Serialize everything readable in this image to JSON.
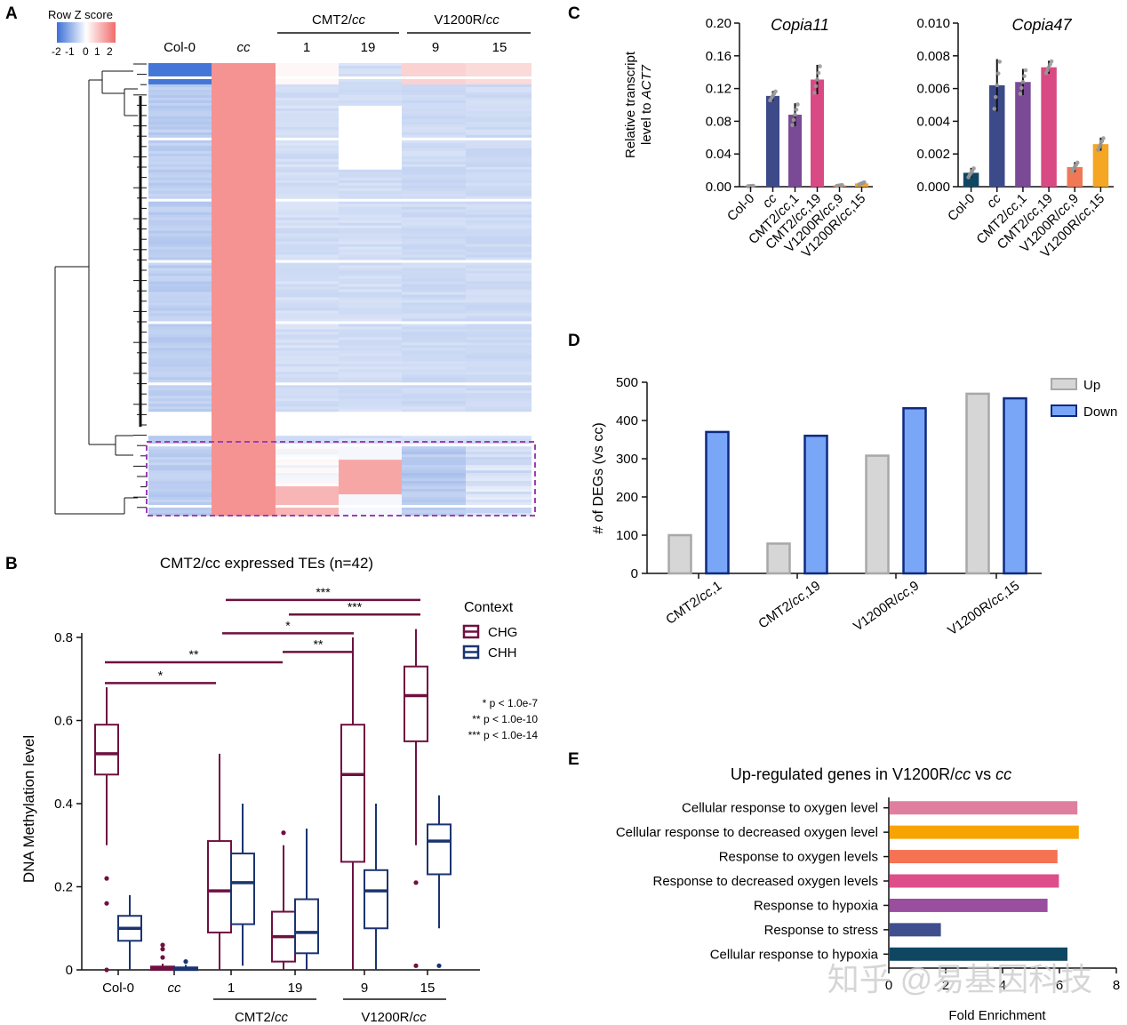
{
  "panels": {
    "A": {
      "label": "A",
      "legend": {
        "title": "Row Z score",
        "ticks": [
          "-2",
          "-1",
          "0",
          "1",
          "2"
        ]
      },
      "col_headers": [
        "Col-0",
        "cc",
        "1",
        "19",
        "9",
        "15"
      ],
      "group_labels": [
        {
          "main": "CMT2/",
          "italic": "cc"
        },
        {
          "main": "V1200R/",
          "italic": "cc"
        }
      ]
    },
    "B": {
      "label": "B",
      "title": "CMT2/cc expressed TEs (n=42)",
      "ylabel": "DNA Methylation level",
      "legend_title": "Context",
      "legend": [
        "CHG",
        "CHH"
      ],
      "pvalue_notes": [
        "* p < 1.0e-7",
        "** p < 1.0e-10",
        "*** p < 1.0e-14"
      ],
      "group_labels": [
        {
          "main": "CMT2/",
          "italic": "cc"
        },
        {
          "main": "V1200R/",
          "italic": "cc"
        }
      ]
    },
    "C": {
      "label": "C",
      "ylabel_line1": "Relative transcript",
      "ylabel_line2_main": "level to ",
      "ylabel_line2_italic": "ACT7"
    },
    "D": {
      "label": "D"
    },
    "E": {
      "label": "E"
    }
  },
  "watermark": "知乎 @易基因科技",
  "colors": {
    "chg": "#6e1140",
    "chh": "#1b3470",
    "sig_line": "#6e1140",
    "up": "#d6d6d6",
    "down": "#7aa6f7",
    "highlight_box": "#9b3fb5"
  },
  "chart_data": [
    {
      "id": "A",
      "type": "heatmap",
      "title": "",
      "columns": [
        "Col-0",
        "cc",
        "CMT2/cc 1",
        "CMT2/cc 19",
        "V1200R/cc 9",
        "V1200R/cc 15"
      ],
      "color_scale": {
        "min": -2,
        "max": 2,
        "low": "blue",
        "mid": "white",
        "high": "red"
      },
      "note": "dendrogram of rows on left; dashed box highlights lower row cluster"
    },
    {
      "id": "B",
      "type": "box",
      "title": "CMT2/cc expressed TEs (n=42)",
      "ylabel": "DNA Methylation level",
      "ylim": [
        0,
        0.8
      ],
      "yticks": [
        "0",
        "0.2",
        "0.4",
        "0.6",
        "0.8"
      ],
      "categories": [
        {
          "name": "Col-0",
          "italic": false
        },
        {
          "name": "cc",
          "italic": true
        },
        {
          "name": "1",
          "italic": false
        },
        {
          "name": "19",
          "italic": false
        },
        {
          "name": "9",
          "italic": false
        },
        {
          "name": "15",
          "italic": false
        }
      ],
      "series": [
        {
          "name": "CHG",
          "boxes": [
            {
              "q1": 0.47,
              "median": 0.52,
              "q3": 0.59,
              "lo": 0.3,
              "hi": 0.68,
              "outliers": [
                0.22,
                0.16,
                0.0
              ]
            },
            {
              "q1": 0.0,
              "median": 0.003,
              "q3": 0.008,
              "lo": 0.0,
              "hi": 0.015,
              "outliers": [
                0.06,
                0.05,
                0.03
              ]
            },
            {
              "q1": 0.09,
              "median": 0.19,
              "q3": 0.31,
              "lo": 0.0,
              "hi": 0.52,
              "outliers": []
            },
            {
              "q1": 0.02,
              "median": 0.08,
              "q3": 0.14,
              "lo": 0.0,
              "hi": 0.3,
              "outliers": [
                0.33
              ]
            },
            {
              "q1": 0.26,
              "median": 0.47,
              "q3": 0.59,
              "lo": 0.0,
              "hi": 0.8,
              "outliers": []
            },
            {
              "q1": 0.55,
              "median": 0.66,
              "q3": 0.73,
              "lo": 0.3,
              "hi": 0.82,
              "outliers": [
                0.21,
                0.01
              ]
            }
          ]
        },
        {
          "name": "CHH",
          "boxes": [
            {
              "q1": 0.07,
              "median": 0.1,
              "q3": 0.13,
              "lo": 0.0,
              "hi": 0.18,
              "outliers": []
            },
            {
              "q1": 0.0,
              "median": 0.003,
              "q3": 0.006,
              "lo": 0.0,
              "hi": 0.012,
              "outliers": [
                0.02
              ]
            },
            {
              "q1": 0.11,
              "median": 0.21,
              "q3": 0.28,
              "lo": 0.01,
              "hi": 0.4,
              "outliers": []
            },
            {
              "q1": 0.04,
              "median": 0.09,
              "q3": 0.17,
              "lo": 0.0,
              "hi": 0.34,
              "outliers": []
            },
            {
              "q1": 0.1,
              "median": 0.19,
              "q3": 0.24,
              "lo": 0.0,
              "hi": 0.4,
              "outliers": []
            },
            {
              "q1": 0.23,
              "median": 0.31,
              "q3": 0.35,
              "lo": 0.1,
              "hi": 0.42,
              "outliers": [
                0.01
              ]
            }
          ]
        }
      ],
      "significance": [
        {
          "stars": "*",
          "from": 0,
          "to": 2,
          "y": 0.69
        },
        {
          "stars": "**",
          "from": 0,
          "to": 3,
          "y": 0.74
        },
        {
          "stars": "**",
          "from": 3,
          "to": 4,
          "y": 0.765
        },
        {
          "stars": "*",
          "from": 2,
          "to": 4,
          "y": 0.81
        },
        {
          "stars": "***",
          "from": 3,
          "to": 5,
          "y": 0.855
        },
        {
          "stars": "***",
          "from": 2,
          "to": 5,
          "y": 0.89
        }
      ]
    },
    {
      "id": "C1",
      "type": "bar",
      "title": "Copia11",
      "ylim": [
        0,
        0.2
      ],
      "yticks": [
        "0.00",
        "0.04",
        "0.08",
        "0.12",
        "0.16",
        "0.20"
      ],
      "categories": [
        {
          "main": "Col-0",
          "italic": ""
        },
        {
          "main": "",
          "italic": "cc"
        },
        {
          "main": "CMT2/",
          "italic": "cc",
          "suffix": ",1"
        },
        {
          "main": "CMT2/",
          "italic": "cc",
          "suffix": ",19"
        },
        {
          "main": "V1200R/",
          "italic": "cc",
          "suffix": ",9"
        },
        {
          "main": "V1200R/",
          "italic": "cc",
          "suffix": ",15"
        }
      ],
      "values": [
        0.0008,
        0.111,
        0.088,
        0.131,
        0.0015,
        0.004
      ],
      "errors": [
        0.0003,
        0.006,
        0.014,
        0.018,
        0.0006,
        0.0015
      ],
      "colors": [
        "#5a5a5a",
        "#3d4a8a",
        "#7a4a96",
        "#d94a84",
        "#f07856",
        "#f5a623"
      ]
    },
    {
      "id": "C2",
      "type": "bar",
      "title": "Copia47",
      "ylim": [
        0,
        0.01
      ],
      "yticks": [
        "0.000",
        "0.002",
        "0.004",
        "0.006",
        "0.008",
        "0.010"
      ],
      "categories": [
        {
          "main": "Col-0",
          "italic": ""
        },
        {
          "main": "",
          "italic": "cc"
        },
        {
          "main": "CMT2/",
          "italic": "cc",
          "suffix": ",1"
        },
        {
          "main": "CMT2/",
          "italic": "cc",
          "suffix": ",19"
        },
        {
          "main": "V1200R/",
          "italic": "cc",
          "suffix": ",9"
        },
        {
          "main": "V1200R/",
          "italic": "cc",
          "suffix": ",15"
        }
      ],
      "values": [
        0.00085,
        0.0062,
        0.0064,
        0.0073,
        0.0012,
        0.0026
      ],
      "errors": [
        0.0003,
        0.0016,
        0.0008,
        0.0004,
        0.0003,
        0.0004
      ],
      "colors": [
        "#0f4763",
        "#3d4a8a",
        "#7a4a96",
        "#d94a84",
        "#f07856",
        "#f5a623"
      ]
    },
    {
      "id": "D",
      "type": "bar",
      "ylabel": "# of DEGs (vs cc)",
      "ylim": [
        0,
        500
      ],
      "yticks": [
        "0",
        "100",
        "200",
        "300",
        "400",
        "500"
      ],
      "categories": [
        {
          "main": "CMT2/",
          "italic": "cc",
          "suffix": ",1"
        },
        {
          "main": "CMT2/",
          "italic": "cc",
          "suffix": ",19"
        },
        {
          "main": "V1200R/",
          "italic": "cc",
          "suffix": ",9"
        },
        {
          "main": "V1200R/",
          "italic": "cc",
          "suffix": ",15"
        }
      ],
      "series": [
        {
          "name": "Up",
          "values": [
            100,
            78,
            308,
            470
          ]
        },
        {
          "name": "Down",
          "values": [
            370,
            360,
            432,
            458
          ]
        }
      ],
      "legend": [
        "Up",
        "Down"
      ]
    },
    {
      "id": "E",
      "type": "bar",
      "orientation": "horizontal",
      "title_main": "Up-regulated genes in V1200R/",
      "title_italic1": "cc",
      "title_mid": " vs ",
      "title_italic2": "cc",
      "xlabel": "Fold Enrichment",
      "xlim": [
        0,
        8
      ],
      "xticks": [
        "0",
        "2",
        "4",
        "6",
        "8"
      ],
      "categories": [
        "Cellular response to oxygen level",
        "Cellular response to decreased oxygen level",
        "Response to oxygen levels",
        "Response to decreased oxygen levels",
        "Response to hypoxia",
        "Response to stress",
        "Cellular response to hypoxia"
      ],
      "values": [
        6.6,
        6.65,
        5.9,
        5.95,
        5.55,
        1.8,
        6.25
      ],
      "colors": [
        "#e07ea0",
        "#f7a400",
        "#f57253",
        "#de4e8a",
        "#9a4e9e",
        "#3f4f8e",
        "#0f4763"
      ]
    }
  ]
}
